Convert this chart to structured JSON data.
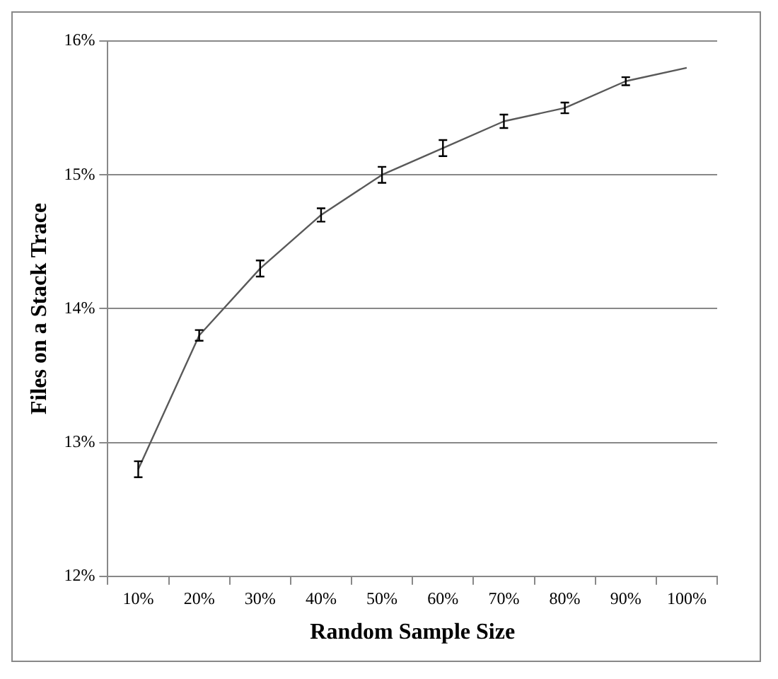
{
  "chart_data": {
    "type": "line",
    "xlabel": "Random Sample Size",
    "ylabel": "Files on a Stack Trace",
    "categories": [
      "10%",
      "20%",
      "30%",
      "40%",
      "50%",
      "60%",
      "70%",
      "80%",
      "90%",
      "100%"
    ],
    "series": [
      {
        "color": "#595959",
        "values": [
          12.8,
          13.8,
          14.3,
          14.7,
          15.0,
          15.2,
          15.4,
          15.5,
          15.7,
          15.8
        ],
        "errors": [
          0.06,
          0.04,
          0.06,
          0.05,
          0.06,
          0.06,
          0.05,
          0.04,
          0.03,
          null
        ]
      }
    ],
    "ylim": [
      12,
      16
    ],
    "yticks": [
      {
        "value": 12,
        "label": "12%"
      },
      {
        "value": 13,
        "label": "13%"
      },
      {
        "value": 14,
        "label": "14%"
      },
      {
        "value": 15,
        "label": "15%"
      },
      {
        "value": 16,
        "label": "16%"
      }
    ],
    "grid": "y",
    "legend": false,
    "line_style": "solid"
  }
}
